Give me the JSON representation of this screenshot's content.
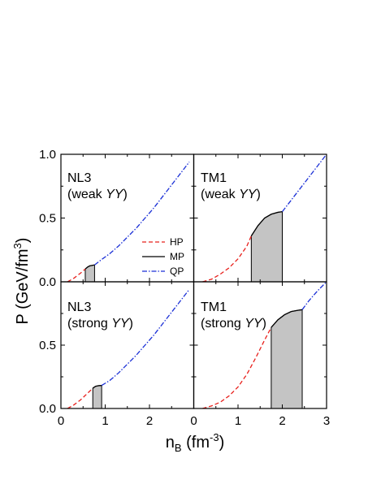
{
  "chart_data": {
    "type": "line",
    "layout": "2x2 panels, shared axes",
    "ylabel": {
      "main": "P (GeV/fm",
      "sup": "3",
      "close": ")"
    },
    "xlabel": {
      "main": "n",
      "sub": "B",
      "rest": " (fm",
      "sup": "-3",
      "close": ")"
    },
    "xlim": [
      0,
      3
    ],
    "ylim": [
      0,
      1.0
    ],
    "x_ticks": [
      "0",
      "1",
      "2",
      "0",
      "1",
      "2",
      "3"
    ],
    "y_ticks_top": [
      "0.0",
      "0.5",
      "1.0"
    ],
    "y_ticks_bottom": [
      "0.0",
      "0.5"
    ],
    "legend": {
      "placement": "inside top-left panel, right side",
      "entries": [
        {
          "label": "HP",
          "color": "#e8201c",
          "dash": "dashed"
        },
        {
          "label": "MP",
          "color": "#000000",
          "dash": "solid"
        },
        {
          "label": "QP",
          "color": "#1a2fd6",
          "dash": "dash-dot"
        }
      ]
    },
    "shaded_fill": "#c4c4c4",
    "panels": [
      {
        "id": "nl3-weak",
        "label_line1": "NL3",
        "label_line2_pre": "(weak ",
        "label_line2_ital": "YY",
        "label_line2_post": ")",
        "xlim": [
          0,
          3
        ],
        "series": {
          "HP": {
            "x": [
              0.15,
              0.3,
              0.45,
              0.55
            ],
            "y": [
              0.0,
              0.03,
              0.07,
              0.1
            ]
          },
          "MP": {
            "x": [
              0.55,
              0.6,
              0.65,
              0.72,
              0.76
            ],
            "y": [
              0.1,
              0.115,
              0.125,
              0.13,
              0.132
            ]
          },
          "QP": {
            "x": [
              0.76,
              0.9,
              1.1,
              1.3,
              1.5,
              1.7,
              1.9,
              2.1,
              2.3,
              2.5,
              2.7,
              2.9
            ],
            "y": [
              0.132,
              0.17,
              0.22,
              0.28,
              0.35,
              0.42,
              0.5,
              0.58,
              0.67,
              0.76,
              0.85,
              0.94
            ]
          }
        },
        "region": {
          "x_start": 0.55,
          "x_end": 0.76
        }
      },
      {
        "id": "tm1-weak",
        "label_line1": "TM1",
        "label_line2_pre": "(weak ",
        "label_line2_ital": "YY",
        "label_line2_post": ")",
        "xlim": [
          0,
          3
        ],
        "series": {
          "HP": {
            "x": [
              0.2,
              0.4,
              0.6,
              0.8,
              1.0,
              1.2,
              1.3
            ],
            "y": [
              0.0,
              0.02,
              0.06,
              0.11,
              0.18,
              0.28,
              0.36
            ]
          },
          "MP": {
            "x": [
              1.3,
              1.45,
              1.6,
              1.75,
              1.9,
              2.0
            ],
            "y": [
              0.36,
              0.44,
              0.5,
              0.53,
              0.545,
              0.55
            ]
          },
          "QP": {
            "x": [
              2.0,
              2.2,
              2.4,
              2.6,
              2.8,
              3.0
            ],
            "y": [
              0.55,
              0.64,
              0.73,
              0.82,
              0.91,
              1.0
            ]
          }
        },
        "region": {
          "x_start": 1.3,
          "x_end": 2.0
        }
      },
      {
        "id": "nl3-strong",
        "label_line1": "NL3",
        "label_line2_pre": "(strong ",
        "label_line2_ital": "YY",
        "label_line2_post": ")",
        "xlim": [
          0,
          3
        ],
        "series": {
          "HP": {
            "x": [
              0.15,
              0.3,
              0.45,
              0.6,
              0.72
            ],
            "y": [
              0.0,
              0.03,
              0.07,
              0.12,
              0.16
            ]
          },
          "MP": {
            "x": [
              0.72,
              0.78,
              0.85,
              0.92
            ],
            "y": [
              0.16,
              0.175,
              0.18,
              0.182
            ]
          },
          "QP": {
            "x": [
              0.92,
              1.1,
              1.3,
              1.5,
              1.7,
              1.9,
              2.1,
              2.3,
              2.5,
              2.7,
              2.9
            ],
            "y": [
              0.182,
              0.22,
              0.28,
              0.35,
              0.42,
              0.5,
              0.58,
              0.67,
              0.76,
              0.85,
              0.94
            ]
          }
        },
        "region": {
          "x_start": 0.72,
          "x_end": 0.92
        }
      },
      {
        "id": "tm1-strong",
        "label_line1": "TM1",
        "label_line2_pre": "(strong ",
        "label_line2_ital": "YY",
        "label_line2_post": ")",
        "xlim": [
          0,
          3
        ],
        "series": {
          "HP": {
            "x": [
              0.2,
              0.4,
              0.6,
              0.8,
              1.0,
              1.2,
              1.4,
              1.6,
              1.75
            ],
            "y": [
              0.0,
              0.02,
              0.05,
              0.1,
              0.17,
              0.27,
              0.4,
              0.54,
              0.64
            ]
          },
          "MP": {
            "x": [
              1.75,
              1.9,
              2.05,
              2.2,
              2.35,
              2.45
            ],
            "y": [
              0.64,
              0.7,
              0.74,
              0.765,
              0.775,
              0.78
            ]
          },
          "QP": {
            "x": [
              2.45,
              2.6,
              2.8,
              3.0
            ],
            "y": [
              0.78,
              0.85,
              0.93,
              1.0
            ]
          }
        },
        "region": {
          "x_start": 1.75,
          "x_end": 2.45
        }
      }
    ]
  }
}
